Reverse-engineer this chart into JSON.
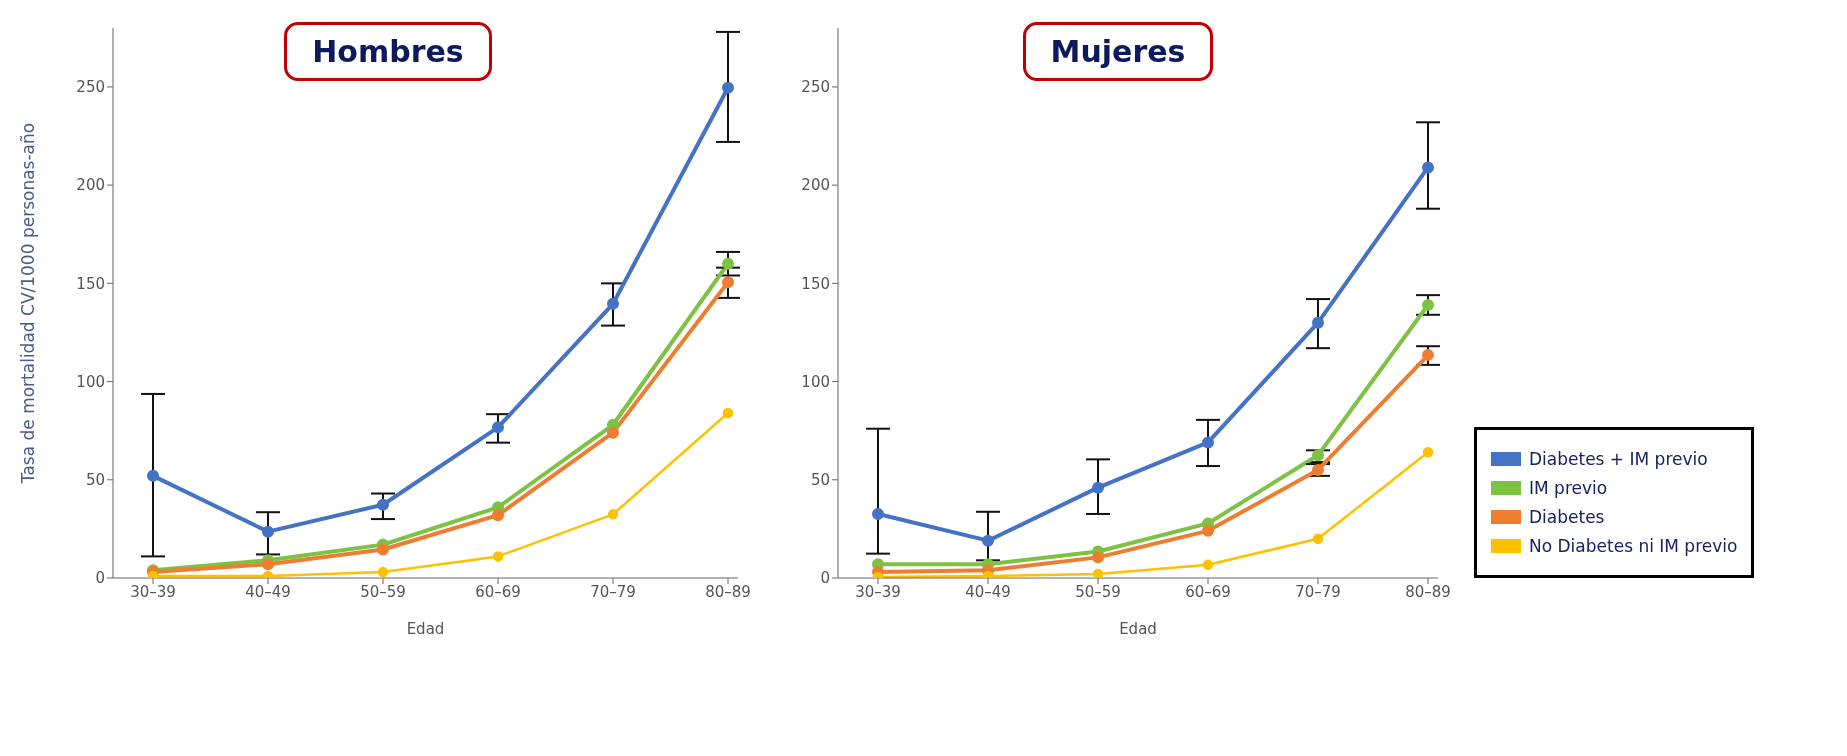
{
  "chart_data": [
    {
      "type": "line",
      "title": "Hombres",
      "xlabel": "Edad",
      "ylabel": "Tasa de mortalidad CV/1000 personas-año",
      "categories": [
        "30–39",
        "40–49",
        "50–59",
        "60–69",
        "70–79",
        "80–89"
      ],
      "ylim": [
        0,
        280
      ],
      "yticks": [
        0,
        50,
        100,
        150,
        200,
        250
      ],
      "grid": false,
      "legend": false,
      "marker": "circle",
      "line_style": "solid",
      "series": [
        {
          "color": "#4472c4",
          "values": [
            52,
            23.6,
            37.3,
            76.7,
            139.6,
            249.6
          ],
          "errors": [
            [
              11,
              93.7
            ],
            [
              12,
              33.5
            ],
            [
              30,
              43
            ],
            [
              68.9,
              83.4
            ],
            [
              128.5,
              150
            ],
            [
              222,
              278
            ]
          ]
        },
        {
          "color": "#7dc243",
          "values": [
            4,
            9,
            17,
            36,
            78,
            160
          ],
          "errors": [
            null,
            null,
            null,
            null,
            null,
            [
              154,
              166
            ]
          ]
        },
        {
          "color": "#ed7d31",
          "values": [
            3,
            7,
            14.5,
            32,
            74,
            150.6
          ],
          "errors": [
            null,
            null,
            null,
            null,
            null,
            [
              142.6,
              158
            ]
          ]
        },
        {
          "color": "#ffc000",
          "values": [
            1,
            1,
            3,
            11,
            32.4,
            84
          ]
        }
      ]
    },
    {
      "type": "line",
      "title": "Mujeres",
      "xlabel": "Edad",
      "categories": [
        "30–39",
        "40–49",
        "50–59",
        "60–69",
        "70–79",
        "80–89"
      ],
      "ylim": [
        0,
        280
      ],
      "yticks": [
        0,
        50,
        100,
        150,
        200,
        250
      ],
      "grid": false,
      "legend": "right",
      "marker": "circle",
      "line_style": "solid",
      "series": [
        {
          "name": "Diabetes + IM previo",
          "color": "#4472c4",
          "values": [
            32.6,
            19,
            46,
            69,
            130,
            209
          ],
          "errors": [
            [
              12.4,
              76
            ],
            [
              9,
              33.7
            ],
            [
              32.6,
              60.4
            ],
            [
              57,
              80.5
            ],
            [
              117,
              142
            ],
            [
              188,
              232
            ]
          ]
        },
        {
          "name": "IM previo",
          "color": "#7dc243",
          "values": [
            7,
            7,
            13.5,
            27.8,
            62.5,
            139
          ],
          "errors": [
            null,
            null,
            null,
            null,
            [
              59,
              65
            ],
            [
              134,
              144
            ]
          ]
        },
        {
          "name": "Diabetes",
          "color": "#ed7d31",
          "values": [
            3,
            4,
            10.5,
            24,
            55,
            113.5
          ],
          "errors": [
            null,
            null,
            null,
            null,
            [
              52,
              58
            ],
            [
              108.5,
              118
            ]
          ]
        },
        {
          "name": "No Diabetes ni IM previo",
          "color": "#ffc000",
          "values": [
            0.5,
            1,
            2,
            6.7,
            20,
            64
          ]
        }
      ]
    }
  ]
}
